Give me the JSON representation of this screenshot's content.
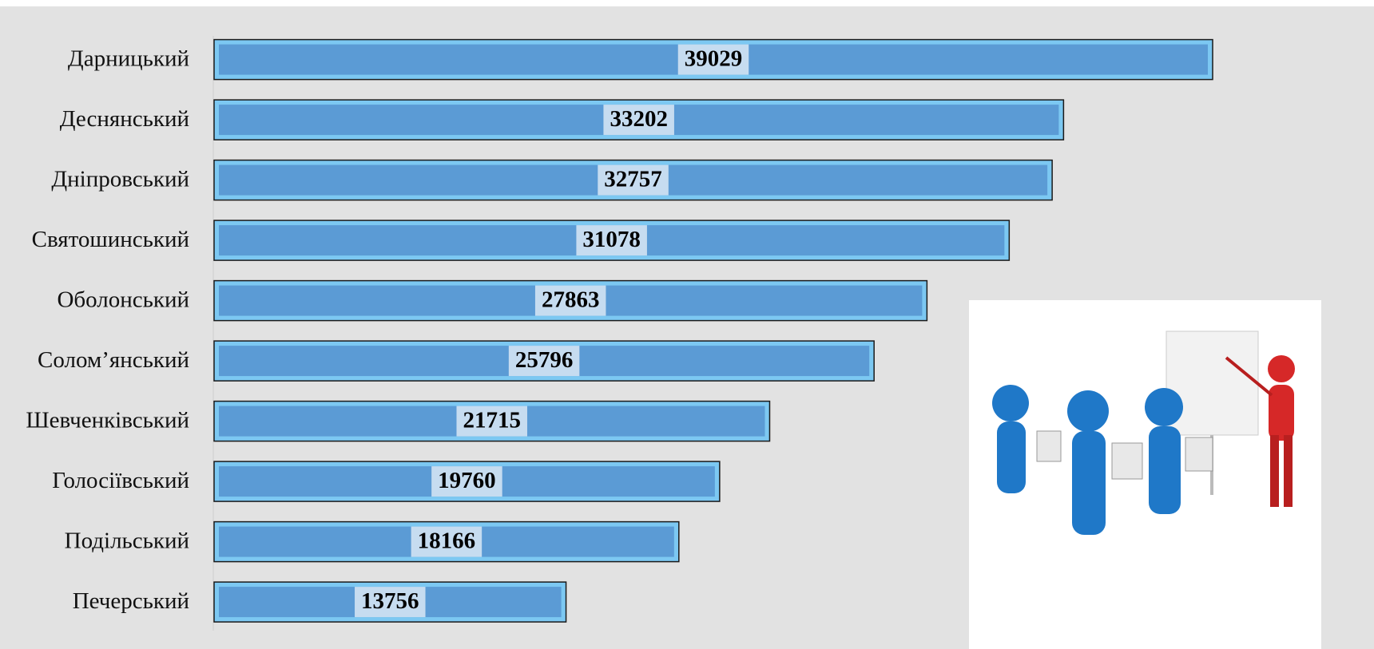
{
  "chart_data": {
    "type": "bar",
    "orientation": "horizontal",
    "categories": [
      "Дарницький",
      "Деснянський",
      "Дніпровський",
      "Святошинський",
      "Оболонський",
      "Солом’янський",
      "Шевченківський",
      "Голосіївський",
      "Подільський",
      "Печерський"
    ],
    "values": [
      39029,
      33202,
      32757,
      31078,
      27863,
      25796,
      21715,
      19760,
      18166,
      13756
    ],
    "color": "#5b9bd5"
  }
}
